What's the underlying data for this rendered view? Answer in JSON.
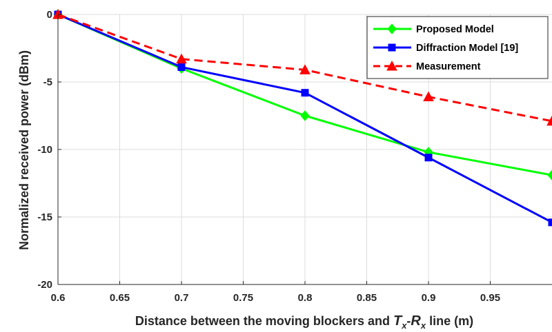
{
  "chart_data": {
    "type": "line",
    "title": "",
    "xlabel_parts": [
      {
        "text": "Distance between the moving blockers and ",
        "style": "normal"
      },
      {
        "text": "T",
        "style": "italic"
      },
      {
        "text": "x",
        "style": "italic-sub"
      },
      {
        "text": "-",
        "style": "normal"
      },
      {
        "text": "R",
        "style": "italic"
      },
      {
        "text": "x",
        "style": "italic-sub"
      },
      {
        "text": " line (m)",
        "style": "normal"
      }
    ],
    "ylabel": "Normalized received power (dBm)",
    "xlim": [
      0.6,
      1.0
    ],
    "ylim": [
      -20,
      0
    ],
    "xticks": [
      0.6,
      0.65,
      0.7,
      0.75,
      0.8,
      0.85,
      0.9,
      0.95
    ],
    "xtick_labels": [
      "0.6",
      "0.65",
      "0.7",
      "0.75",
      "0.8",
      "0.85",
      "0.9",
      "0.95"
    ],
    "yticks": [
      0,
      -5,
      -10,
      -15,
      -20
    ],
    "ytick_labels": [
      "0",
      "-5",
      "-10",
      "-15",
      "-20"
    ],
    "grid": true,
    "legend_position": "top-right",
    "series": [
      {
        "name": "Proposed Model",
        "color": "#00ff00",
        "line_style": "solid",
        "marker": "diamond",
        "x": [
          0.6,
          0.7,
          0.8,
          0.9,
          1.0
        ],
        "y": [
          0,
          -4.0,
          -7.5,
          -10.2,
          -11.9
        ]
      },
      {
        "name": "Diffraction Model [19]",
        "color": "#0000ff",
        "line_style": "solid",
        "marker": "square",
        "x": [
          0.6,
          0.7,
          0.8,
          0.9,
          1.0
        ],
        "y": [
          0,
          -3.9,
          -5.8,
          -10.6,
          -15.4
        ]
      },
      {
        "name": "Measurement",
        "color": "#ff0000",
        "line_style": "dashed",
        "marker": "triangle",
        "x": [
          0.6,
          0.7,
          0.8,
          0.9,
          1.0
        ],
        "y": [
          0,
          -3.3,
          -4.1,
          -6.1,
          -7.9
        ]
      }
    ]
  }
}
